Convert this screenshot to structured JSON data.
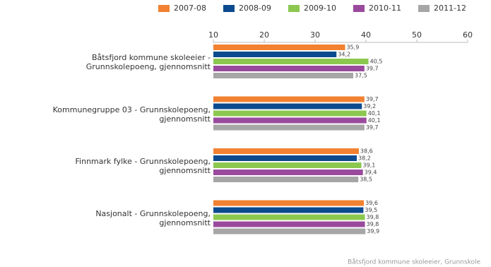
{
  "chart_data": {
    "type": "hbar",
    "categories": [
      "Båtsfjord kommune skoleeier -\nGrunnskolepoeng, gjennomsnitt",
      "Kommunegruppe 03 - Grunnskolepoeng,\ngjennomsnitt",
      "Finnmark fylke - Grunnskolepoeng,\ngjennomsnitt",
      "Nasjonalt - Grunnskolepoeng,\ngjennomsnitt"
    ],
    "series": [
      {
        "name": "2007-08",
        "color": "#f28131",
        "values": [
          35.9,
          39.7,
          38.6,
          39.6
        ],
        "value_labels": [
          "35,9",
          "39,7",
          "38,6",
          "39,6"
        ]
      },
      {
        "name": "2008-09",
        "color": "#0b4a8e",
        "values": [
          34.2,
          39.2,
          38.2,
          39.5
        ],
        "value_labels": [
          "34,2",
          "39,2",
          "38,2",
          "39,5"
        ]
      },
      {
        "name": "2009-10",
        "color": "#8cc850",
        "values": [
          40.5,
          40.1,
          39.1,
          39.8
        ],
        "value_labels": [
          "40,5",
          "40,1",
          "39,1",
          "39,8"
        ]
      },
      {
        "name": "2010-11",
        "color": "#9a4a9c",
        "values": [
          39.7,
          40.1,
          39.4,
          39.8
        ],
        "value_labels": [
          "39,7",
          "40,1",
          "39,4",
          "39,8"
        ]
      },
      {
        "name": "2011-12",
        "color": "#a6a6a6",
        "values": [
          37.5,
          39.7,
          38.5,
          39.9
        ],
        "value_labels": [
          "37,5",
          "39,7",
          "38,5",
          "39,9"
        ]
      }
    ],
    "xlim": [
      10,
      60
    ],
    "xticks": [
      10,
      20,
      30,
      40,
      50,
      60
    ],
    "grid": false,
    "footnote": "Båtsfjord kommune skoleeier, Grunnskole"
  }
}
